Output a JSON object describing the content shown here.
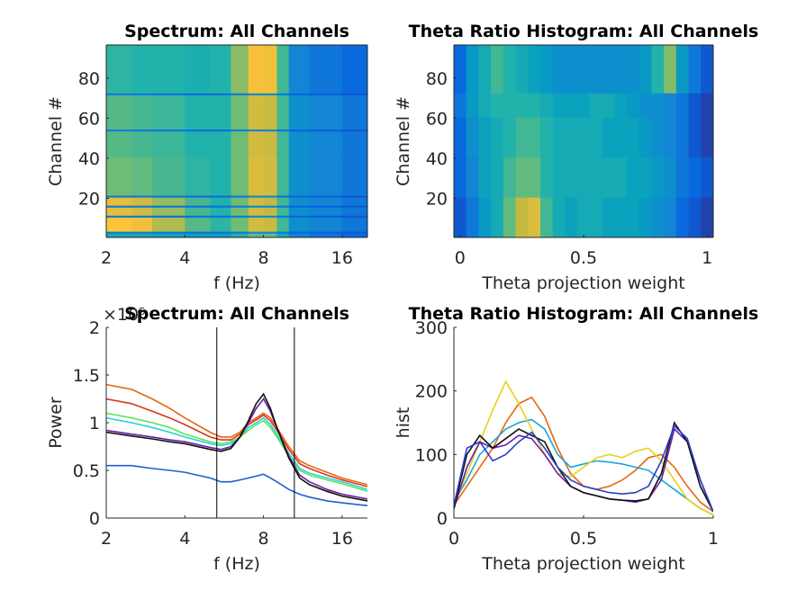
{
  "chart_data": [
    {
      "type": "heatmap",
      "title": "Spectrum: All Channels",
      "xlabel": "f (Hz)",
      "ylabel": "Channel #",
      "xscale": "log",
      "xlim": [
        2,
        20
      ],
      "xticks": [
        2,
        4,
        8,
        16
      ],
      "ylim": [
        0.5,
        96.5
      ],
      "yticks": [
        20,
        40,
        60,
        80
      ],
      "colormap": "parula",
      "clim": [
        0,
        1
      ],
      "box": true,
      "xbins": [
        2,
        2.5,
        3,
        4,
        5,
        6,
        7,
        8,
        9,
        10,
        12,
        16,
        20
      ],
      "ybins": [
        0.5,
        2.5,
        3.5,
        10.5,
        11.5,
        15.5,
        16.5,
        20.5,
        21.5,
        40.5,
        53.5,
        54.5,
        71.5,
        72.5,
        96.5
      ],
      "z": [
        [
          0.45,
          0.45,
          0.42,
          0.4,
          0.4,
          0.5,
          0.6,
          0.6,
          0.45,
          0.25,
          0.2,
          0.15
        ],
        [
          0.22,
          0.22,
          0.2,
          0.18,
          0.18,
          0.22,
          0.28,
          0.28,
          0.2,
          0.14,
          0.12,
          0.1
        ],
        [
          0.88,
          0.85,
          0.72,
          0.58,
          0.52,
          0.62,
          0.78,
          0.76,
          0.55,
          0.3,
          0.25,
          0.2
        ],
        [
          0.22,
          0.22,
          0.2,
          0.18,
          0.18,
          0.22,
          0.28,
          0.28,
          0.2,
          0.14,
          0.12,
          0.1
        ],
        [
          0.82,
          0.78,
          0.68,
          0.56,
          0.5,
          0.62,
          0.78,
          0.75,
          0.55,
          0.3,
          0.25,
          0.2
        ],
        [
          0.22,
          0.22,
          0.2,
          0.18,
          0.18,
          0.22,
          0.28,
          0.28,
          0.2,
          0.14,
          0.12,
          0.1
        ],
        [
          0.82,
          0.78,
          0.68,
          0.56,
          0.5,
          0.62,
          0.78,
          0.75,
          0.55,
          0.3,
          0.25,
          0.2
        ],
        [
          0.22,
          0.22,
          0.2,
          0.18,
          0.18,
          0.22,
          0.28,
          0.28,
          0.2,
          0.14,
          0.12,
          0.1
        ],
        [
          0.62,
          0.6,
          0.56,
          0.52,
          0.5,
          0.62,
          0.8,
          0.78,
          0.55,
          0.3,
          0.25,
          0.2
        ],
        [
          0.58,
          0.56,
          0.54,
          0.5,
          0.5,
          0.62,
          0.78,
          0.76,
          0.55,
          0.3,
          0.25,
          0.2
        ],
        [
          0.22,
          0.22,
          0.2,
          0.18,
          0.18,
          0.22,
          0.28,
          0.28,
          0.2,
          0.14,
          0.12,
          0.1
        ],
        [
          0.58,
          0.56,
          0.54,
          0.5,
          0.5,
          0.62,
          0.78,
          0.76,
          0.55,
          0.3,
          0.25,
          0.2
        ],
        [
          0.22,
          0.22,
          0.2,
          0.18,
          0.18,
          0.22,
          0.28,
          0.28,
          0.2,
          0.14,
          0.12,
          0.1
        ],
        [
          0.52,
          0.5,
          0.5,
          0.48,
          0.5,
          0.66,
          0.86,
          0.85,
          0.55,
          0.25,
          0.2,
          0.15
        ]
      ]
    },
    {
      "type": "heatmap",
      "title": "Theta Ratio Histogram: All Channels",
      "xlabel": "Theta projection weight",
      "ylabel": "Channel #",
      "xlim": [
        -0.025,
        1.025
      ],
      "xticks": [
        0,
        0.5,
        1
      ],
      "ylim": [
        0.5,
        96.5
      ],
      "yticks": [
        20,
        40,
        60,
        80
      ],
      "colormap": "parula",
      "clim": [
        0,
        1
      ],
      "box": true,
      "xbins": [
        -0.025,
        0.025,
        0.075,
        0.125,
        0.175,
        0.225,
        0.275,
        0.325,
        0.375,
        0.425,
        0.475,
        0.525,
        0.575,
        0.625,
        0.675,
        0.725,
        0.775,
        0.825,
        0.875,
        0.925,
        0.975,
        1.025
      ],
      "ybins": [
        0.5,
        20.5,
        40.5,
        60.5,
        72.5,
        96.5
      ],
      "z": [
        [
          0.1,
          0.2,
          0.35,
          0.45,
          0.6,
          0.75,
          0.8,
          0.55,
          0.45,
          0.4,
          0.45,
          0.45,
          0.4,
          0.4,
          0.4,
          0.35,
          0.3,
          0.25,
          0.15,
          0.1,
          0.05
        ],
        [
          0.15,
          0.25,
          0.4,
          0.45,
          0.55,
          0.6,
          0.6,
          0.5,
          0.45,
          0.45,
          0.45,
          0.45,
          0.45,
          0.45,
          0.4,
          0.4,
          0.35,
          0.3,
          0.2,
          0.15,
          0.1
        ],
        [
          0.15,
          0.3,
          0.4,
          0.45,
          0.5,
          0.55,
          0.55,
          0.5,
          0.45,
          0.45,
          0.45,
          0.45,
          0.4,
          0.4,
          0.4,
          0.35,
          0.3,
          0.25,
          0.2,
          0.1,
          0.05
        ],
        [
          0.2,
          0.35,
          0.45,
          0.5,
          0.5,
          0.5,
          0.5,
          0.45,
          0.4,
          0.4,
          0.4,
          0.45,
          0.45,
          0.4,
          0.35,
          0.3,
          0.3,
          0.25,
          0.2,
          0.1,
          0.05
        ],
        [
          0.15,
          0.35,
          0.45,
          0.55,
          0.5,
          0.45,
          0.4,
          0.35,
          0.3,
          0.3,
          0.3,
          0.3,
          0.3,
          0.3,
          0.3,
          0.35,
          0.5,
          0.65,
          0.35,
          0.2,
          0.1
        ]
      ]
    },
    {
      "type": "line",
      "title": "Spectrum: All Channels",
      "xlabel": "f (Hz)",
      "ylabel": "Power",
      "y_exponent": "×10⁵",
      "xscale": "log",
      "xlim": [
        2,
        20
      ],
      "xticks": [
        2,
        4,
        8,
        16
      ],
      "ylim": [
        0,
        2
      ],
      "yticks": [
        0,
        0.5,
        1,
        1.5,
        2
      ],
      "box": false,
      "vlines": [
        5.3,
        10.5
      ],
      "x": [
        2,
        2.5,
        3,
        3.5,
        4,
        5,
        5.5,
        6,
        6.5,
        7,
        7.5,
        8,
        8.5,
        9,
        10,
        11,
        12,
        14,
        16,
        20
      ],
      "series": [
        {
          "color": "#e8650c",
          "values": [
            1.4,
            1.35,
            1.25,
            1.15,
            1.05,
            0.9,
            0.85,
            0.85,
            0.9,
            1.0,
            1.05,
            1.1,
            1.05,
            0.95,
            0.75,
            0.6,
            0.55,
            0.48,
            0.42,
            0.35
          ]
        },
        {
          "color": "#d9361c",
          "values": [
            1.25,
            1.2,
            1.12,
            1.05,
            0.98,
            0.85,
            0.82,
            0.82,
            0.88,
            0.98,
            1.03,
            1.08,
            1.02,
            0.92,
            0.72,
            0.57,
            0.52,
            0.45,
            0.4,
            0.33
          ]
        },
        {
          "color": "#22d4d8",
          "values": [
            1.05,
            1.0,
            0.95,
            0.9,
            0.85,
            0.78,
            0.76,
            0.78,
            0.85,
            0.95,
            1.0,
            1.05,
            0.98,
            0.88,
            0.68,
            0.52,
            0.47,
            0.42,
            0.38,
            0.3
          ]
        },
        {
          "color": "#5be35b",
          "values": [
            1.1,
            1.05,
            1.0,
            0.95,
            0.88,
            0.8,
            0.78,
            0.8,
            0.85,
            0.92,
            0.98,
            1.02,
            0.95,
            0.85,
            0.65,
            0.5,
            0.45,
            0.4,
            0.36,
            0.28
          ]
        },
        {
          "color": "#6a1fa8",
          "values": [
            0.92,
            0.88,
            0.85,
            0.82,
            0.8,
            0.74,
            0.72,
            0.75,
            0.85,
            1.0,
            1.15,
            1.25,
            1.12,
            0.95,
            0.65,
            0.45,
            0.38,
            0.3,
            0.25,
            0.2
          ]
        },
        {
          "color": "#111111",
          "values": [
            0.9,
            0.86,
            0.83,
            0.8,
            0.78,
            0.72,
            0.7,
            0.73,
            0.85,
            1.02,
            1.2,
            1.3,
            1.15,
            0.95,
            0.63,
            0.42,
            0.35,
            0.28,
            0.23,
            0.18
          ]
        },
        {
          "color": "#1f5fd0",
          "values": [
            0.55,
            0.55,
            0.52,
            0.5,
            0.48,
            0.42,
            0.38,
            0.38,
            0.4,
            0.42,
            0.44,
            0.46,
            0.42,
            0.38,
            0.3,
            0.25,
            0.22,
            0.18,
            0.16,
            0.13
          ]
        }
      ]
    },
    {
      "type": "line",
      "title": "Theta Ratio Histogram: All Channels",
      "xlabel": "Theta projection weight",
      "ylabel": "hist",
      "xlim": [
        0,
        1
      ],
      "xticks": [
        0,
        0.5,
        1
      ],
      "ylim": [
        0,
        300
      ],
      "yticks": [
        0,
        100,
        200,
        300
      ],
      "box": false,
      "x": [
        0,
        0.05,
        0.1,
        0.15,
        0.2,
        0.25,
        0.3,
        0.35,
        0.4,
        0.45,
        0.5,
        0.55,
        0.6,
        0.65,
        0.7,
        0.75,
        0.8,
        0.85,
        0.9,
        0.95,
        1
      ],
      "series": [
        {
          "color": "#e8650c",
          "values": [
            20,
            50,
            80,
            110,
            150,
            180,
            190,
            160,
            110,
            70,
            50,
            45,
            50,
            60,
            75,
            95,
            100,
            80,
            50,
            25,
            10
          ]
        },
        {
          "color": "#1aa6d8",
          "values": [
            25,
            60,
            100,
            120,
            140,
            150,
            155,
            140,
            100,
            80,
            85,
            90,
            88,
            85,
            80,
            75,
            60,
            45,
            30,
            15,
            5
          ]
        },
        {
          "color": "#e6d21a",
          "values": [
            20,
            70,
            120,
            170,
            215,
            180,
            140,
            100,
            70,
            65,
            80,
            95,
            100,
            95,
            105,
            110,
            90,
            60,
            30,
            15,
            5
          ]
        },
        {
          "color": "#6a1fa8",
          "values": [
            15,
            80,
            120,
            110,
            115,
            130,
            125,
            100,
            70,
            50,
            40,
            35,
            30,
            28,
            25,
            30,
            60,
            140,
            120,
            60,
            10
          ]
        },
        {
          "color": "#111111",
          "values": [
            15,
            100,
            130,
            110,
            125,
            140,
            130,
            120,
            80,
            50,
            40,
            35,
            30,
            28,
            27,
            30,
            70,
            150,
            120,
            50,
            10
          ]
        },
        {
          "color": "#2a3fc8",
          "values": [
            20,
            110,
            120,
            90,
            100,
            120,
            135,
            110,
            80,
            60,
            50,
            45,
            40,
            38,
            40,
            50,
            90,
            145,
            125,
            60,
            10
          ]
        }
      ]
    }
  ]
}
